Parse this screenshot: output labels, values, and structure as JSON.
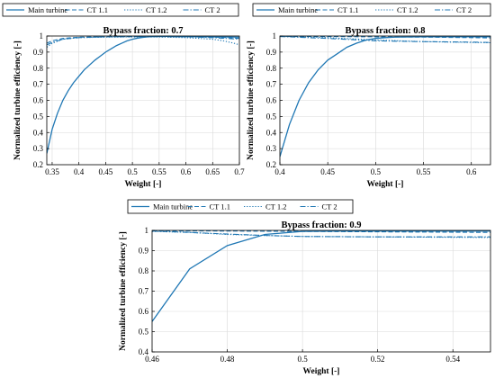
{
  "chart_data": [
    {
      "type": "line",
      "title": "Bypass fraction: 0.7",
      "xlabel": "Weight [-]",
      "ylabel": "Normalized turbine efficiency [-]",
      "xlim": [
        0.34,
        0.7
      ],
      "ylim": [
        0.2,
        1.0
      ],
      "xticks": [
        0.35,
        0.4,
        0.45,
        0.5,
        0.55,
        0.6,
        0.65,
        0.7
      ],
      "xtick_labels": [
        "0.35",
        "0.4",
        "0.45",
        "0.5",
        "0.55",
        "0.6",
        "0.65",
        "0.7"
      ],
      "yticks": [
        0.2,
        0.3,
        0.4,
        0.5,
        0.6,
        0.7,
        0.8,
        0.9,
        1.0
      ],
      "ytick_labels": [
        "0.2",
        "0.3",
        "0.4",
        "0.5",
        "0.6",
        "0.7",
        "0.8",
        "0.9",
        "1"
      ],
      "grid": true,
      "legend_position": "top",
      "series": [
        {
          "name": "Main turbine",
          "style": "solid",
          "x": [
            0.34,
            0.35,
            0.36,
            0.37,
            0.38,
            0.39,
            0.4,
            0.41,
            0.42,
            0.43,
            0.44,
            0.45,
            0.46,
            0.47,
            0.48,
            0.49,
            0.5,
            0.51,
            0.52,
            0.53,
            0.54,
            0.55,
            0.57,
            0.6,
            0.65,
            0.7
          ],
          "y": [
            0.27,
            0.42,
            0.52,
            0.6,
            0.66,
            0.71,
            0.75,
            0.79,
            0.82,
            0.85,
            0.875,
            0.9,
            0.92,
            0.94,
            0.955,
            0.97,
            0.98,
            0.987,
            0.992,
            0.995,
            0.997,
            0.998,
            0.998,
            0.997,
            0.995,
            0.993
          ]
        },
        {
          "name": "CT 1.1",
          "style": "dashed",
          "x": [
            0.34,
            0.35,
            0.37,
            0.4,
            0.45,
            0.5,
            0.55,
            0.6,
            0.65,
            0.68,
            0.7
          ],
          "y": [
            0.955,
            0.97,
            0.985,
            0.993,
            0.995,
            0.996,
            0.996,
            0.995,
            0.993,
            0.99,
            0.985
          ]
        },
        {
          "name": "CT 1.2",
          "style": "dotted",
          "x": [
            0.34,
            0.35,
            0.37,
            0.4,
            0.45,
            0.5,
            0.55,
            0.6,
            0.65,
            0.67,
            0.69,
            0.7
          ],
          "y": [
            0.93,
            0.955,
            0.98,
            0.99,
            0.993,
            0.994,
            0.994,
            0.99,
            0.98,
            0.97,
            0.955,
            0.945
          ]
        },
        {
          "name": "CT 2",
          "style": "dashdot",
          "x": [
            0.34,
            0.35,
            0.37,
            0.4,
            0.45,
            0.5,
            0.55,
            0.6,
            0.65,
            0.7
          ],
          "y": [
            0.945,
            0.96,
            0.98,
            0.99,
            0.995,
            0.997,
            0.997,
            0.995,
            0.99,
            0.98
          ]
        }
      ]
    },
    {
      "type": "line",
      "title": "Bypass fraction: 0.8",
      "xlabel": "Weight [-]",
      "ylabel": "Normalized turbine efficiency [-]",
      "xlim": [
        0.4,
        0.62
      ],
      "ylim": [
        0.2,
        1.0
      ],
      "xticks": [
        0.4,
        0.45,
        0.5,
        0.55,
        0.6
      ],
      "xtick_labels": [
        "0.4",
        "0.45",
        "0.5",
        "0.55",
        "0.6"
      ],
      "yticks": [
        0.2,
        0.3,
        0.4,
        0.5,
        0.6,
        0.7,
        0.8,
        0.9,
        1.0
      ],
      "ytick_labels": [
        "0.2",
        "0.3",
        "0.4",
        "0.5",
        "0.6",
        "0.7",
        "0.8",
        "0.9",
        "1"
      ],
      "grid": true,
      "legend_position": "top",
      "series": [
        {
          "name": "Main turbine",
          "style": "solid",
          "x": [
            0.4,
            0.41,
            0.42,
            0.43,
            0.44,
            0.45,
            0.46,
            0.47,
            0.48,
            0.49,
            0.5,
            0.51,
            0.52,
            0.55,
            0.6,
            0.62
          ],
          "y": [
            0.25,
            0.45,
            0.6,
            0.71,
            0.79,
            0.85,
            0.89,
            0.93,
            0.955,
            0.975,
            0.985,
            0.99,
            0.993,
            0.995,
            0.995,
            0.995
          ]
        },
        {
          "name": "CT 1.1",
          "style": "dashed",
          "x": [
            0.4,
            0.45,
            0.5,
            0.55,
            0.6,
            0.62
          ],
          "y": [
            0.998,
            0.997,
            0.995,
            0.993,
            0.99,
            0.988
          ]
        },
        {
          "name": "CT 1.2",
          "style": "dotted",
          "x": [
            0.4,
            0.45,
            0.5,
            0.55,
            0.6,
            0.62
          ],
          "y": [
            0.998,
            0.99,
            0.975,
            0.965,
            0.96,
            0.958
          ]
        },
        {
          "name": "CT 2",
          "style": "dashdot",
          "x": [
            0.4,
            0.45,
            0.5,
            0.55,
            0.6,
            0.62
          ],
          "y": [
            0.997,
            0.985,
            0.97,
            0.965,
            0.962,
            0.96
          ]
        }
      ]
    },
    {
      "type": "line",
      "title": "Bypass fraction: 0.9",
      "xlabel": "Weight [-]",
      "ylabel": "Normalized turbine efficiency [-]",
      "xlim": [
        0.46,
        0.55
      ],
      "ylim": [
        0.4,
        1.0
      ],
      "xticks": [
        0.46,
        0.48,
        0.5,
        0.52,
        0.54
      ],
      "xtick_labels": [
        "0.46",
        "0.48",
        "0.5",
        "0.52",
        "0.54"
      ],
      "yticks": [
        0.4,
        0.5,
        0.6,
        0.7,
        0.8,
        0.9,
        1.0
      ],
      "ytick_labels": [
        "0.4",
        "0.5",
        "0.6",
        "0.7",
        "0.8",
        "0.9",
        "1"
      ],
      "grid": true,
      "legend_position": "top",
      "series": [
        {
          "name": "Main turbine",
          "style": "solid",
          "x": [
            0.46,
            0.47,
            0.48,
            0.49,
            0.5,
            0.51,
            0.52,
            0.53,
            0.54,
            0.55
          ],
          "y": [
            0.55,
            0.81,
            0.925,
            0.98,
            0.995,
            0.997,
            0.997,
            0.997,
            0.997,
            0.997
          ]
        },
        {
          "name": "CT 1.1",
          "style": "dashed",
          "x": [
            0.46,
            0.48,
            0.5,
            0.52,
            0.55
          ],
          "y": [
            0.998,
            0.997,
            0.995,
            0.993,
            0.99
          ]
        },
        {
          "name": "CT 1.2",
          "style": "dotted",
          "x": [
            0.46,
            0.47,
            0.48,
            0.49,
            0.5,
            0.52,
            0.55
          ],
          "y": [
            0.995,
            0.99,
            0.98,
            0.975,
            0.97,
            0.968,
            0.965
          ]
        },
        {
          "name": "CT 2",
          "style": "dashdot",
          "x": [
            0.46,
            0.47,
            0.48,
            0.49,
            0.5,
            0.52,
            0.55
          ],
          "y": [
            0.997,
            0.99,
            0.982,
            0.975,
            0.97,
            0.968,
            0.968
          ]
        }
      ]
    }
  ],
  "colors": {
    "line": "#1f77b4",
    "axis": "#000000",
    "grid": "#d9d9d9"
  }
}
